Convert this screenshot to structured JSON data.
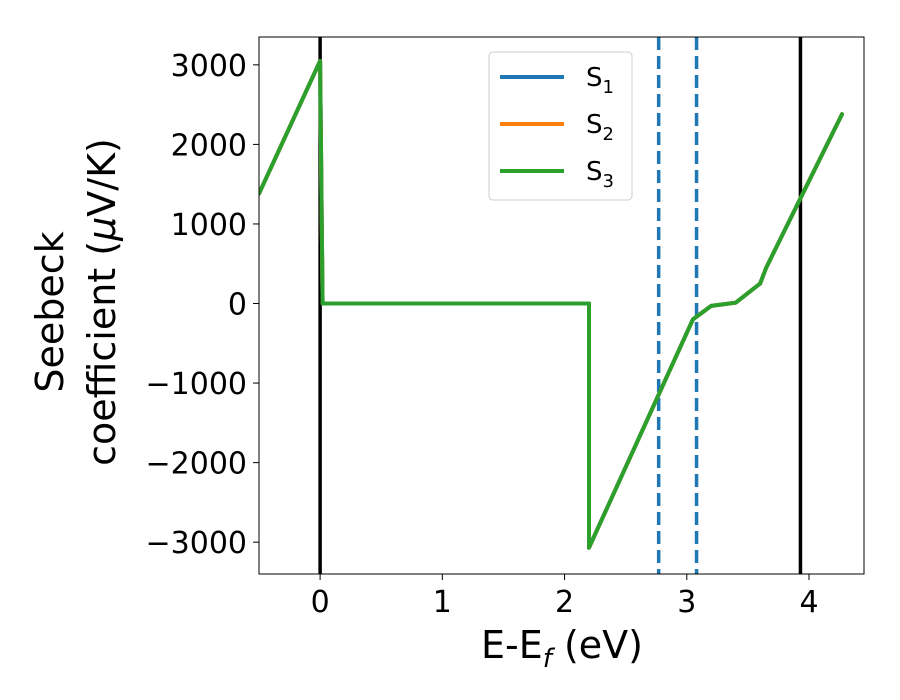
{
  "chart_data": {
    "type": "line",
    "title": "",
    "xlabel": {
      "main": "E-E",
      "sub": "f",
      "tail": " (eV)"
    },
    "ylabel": {
      "line1": "Seebeck",
      "line2_pre": "coefficient  (",
      "mu": "μ",
      "line2_post": "V/K)"
    },
    "xlim": [
      -0.5,
      4.45
    ],
    "ylim": [
      -3400,
      3350
    ],
    "xticks": [
      0,
      1,
      2,
      3,
      4
    ],
    "yticks": [
      -3000,
      -2000,
      -1000,
      0,
      1000,
      2000,
      3000
    ],
    "xtick_labels": [
      "0",
      "1",
      "2",
      "3",
      "4"
    ],
    "ytick_labels": [
      "−3000",
      "−2000",
      "−1000",
      "0",
      "1000",
      "2000",
      "3000"
    ],
    "grid": false,
    "legend_position": "top-center",
    "series": [
      {
        "name": "S",
        "sub": "1",
        "color": "#1f77b4",
        "x": [
          -0.5,
          0.0,
          0.02,
          2.2,
          2.2,
          3.05,
          3.2,
          3.4,
          3.6,
          3.65,
          4.27
        ],
        "y": [
          1380,
          3050,
          0,
          0,
          -3070,
          -200,
          -30,
          10,
          250,
          450,
          2380
        ]
      },
      {
        "name": "S",
        "sub": "2",
        "color": "#ff7f0e",
        "x": [
          -0.5,
          0.0,
          0.02,
          2.2,
          2.2,
          3.05,
          3.2,
          3.4,
          3.6,
          3.65,
          4.27
        ],
        "y": [
          1380,
          3050,
          0,
          0,
          -3070,
          -200,
          -30,
          10,
          250,
          450,
          2380
        ]
      },
      {
        "name": "S",
        "sub": "3",
        "color": "#2ca02c",
        "x": [
          -0.5,
          0.0,
          0.02,
          2.2,
          2.2,
          3.05,
          3.2,
          3.4,
          3.6,
          3.65,
          4.27
        ],
        "y": [
          1380,
          3050,
          0,
          0,
          -3070,
          -200,
          -30,
          10,
          250,
          450,
          2380
        ]
      }
    ],
    "vlines": [
      {
        "x": 0.0,
        "color": "#000000",
        "style": "solid"
      },
      {
        "x": 3.93,
        "color": "#000000",
        "style": "solid"
      },
      {
        "x": 2.77,
        "color": "#1f77b4",
        "style": "dashed"
      },
      {
        "x": 3.08,
        "color": "#1f77b4",
        "style": "dashed"
      }
    ]
  }
}
